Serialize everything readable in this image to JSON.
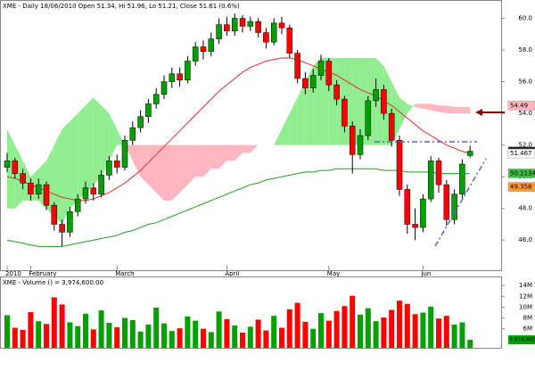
{
  "chart_data": [
    {
      "type": "candlestick",
      "title": "XME - Daily 18/06/2010 Open 51.34, Hi 51.96, Lo 51.21, Close 51.61 (0.6%)",
      "categories": [
        "2010",
        null,
        null,
        "February",
        null,
        null,
        null,
        null,
        null,
        null,
        null,
        null,
        null,
        null,
        "March",
        null,
        null,
        null,
        null,
        null,
        null,
        null,
        null,
        null,
        null,
        null,
        null,
        null,
        "April",
        null,
        null,
        null,
        null,
        null,
        null,
        null,
        null,
        null,
        null,
        null,
        null,
        "May",
        null,
        null,
        null,
        null,
        null,
        null,
        null,
        null,
        null,
        null,
        null,
        "Jun",
        null,
        null,
        null,
        null,
        null,
        null
      ],
      "open": [
        50.6,
        51.0,
        50.2,
        49.6,
        48.9,
        49.5,
        48.2,
        47.0,
        46.5,
        47.8,
        48.6,
        49.3,
        48.9,
        50.1,
        51.0,
        50.6,
        52.3,
        53.1,
        53.8,
        54.6,
        55.2,
        56.0,
        56.5,
        56.1,
        57.3,
        58.2,
        57.9,
        58.7,
        59.6,
        59.2,
        60.0,
        59.5,
        59.8,
        59.1,
        58.5,
        59.7,
        59.4,
        57.8,
        56.2,
        55.6,
        56.4,
        57.3,
        55.8,
        54.9,
        53.2,
        51.4,
        52.6,
        54.8,
        55.5,
        54.0,
        52.3,
        49.2,
        47.0,
        46.8,
        48.6,
        51.0,
        49.5,
        47.3,
        48.9,
        51.34
      ],
      "high": [
        51.5,
        51.2,
        50.5,
        49.9,
        49.9,
        49.7,
        48.4,
        47.3,
        48.1,
        48.9,
        49.7,
        49.6,
        50.4,
        51.3,
        51.4,
        52.6,
        53.5,
        54.2,
        54.9,
        55.6,
        56.4,
        56.9,
        56.9,
        57.6,
        58.5,
        58.6,
        59.1,
        60.0,
        60.1,
        60.3,
        60.2,
        60.1,
        60.0,
        59.4,
        60.0,
        60.1,
        59.6,
        58.0,
        56.6,
        56.8,
        57.7,
        57.5,
        56.1,
        55.1,
        53.5,
        53.0,
        55.1,
        56.2,
        55.8,
        54.3,
        52.6,
        49.5,
        48.0,
        48.9,
        51.3,
        51.2,
        49.8,
        49.2,
        51.1,
        51.96
      ],
      "low": [
        50.3,
        49.9,
        49.2,
        48.5,
        48.6,
        47.9,
        46.6,
        45.6,
        46.2,
        47.5,
        48.3,
        48.5,
        48.7,
        49.8,
        50.2,
        50.4,
        52.0,
        52.8,
        53.4,
        54.3,
        54.9,
        55.6,
        55.7,
        55.9,
        57.0,
        57.4,
        57.6,
        58.4,
        58.9,
        58.9,
        59.1,
        59.2,
        58.8,
        58.1,
        58.3,
        59.0,
        57.5,
        55.9,
        55.2,
        55.3,
        56.1,
        55.4,
        54.5,
        52.8,
        50.2,
        51.1,
        52.3,
        54.4,
        53.6,
        51.9,
        48.8,
        46.4,
        46.0,
        46.5,
        48.4,
        49.0,
        46.9,
        47.0,
        48.6,
        51.21
      ],
      "close": [
        51.0,
        50.2,
        49.6,
        48.9,
        49.5,
        48.2,
        47.0,
        46.5,
        47.8,
        48.6,
        49.3,
        48.9,
        50.1,
        51.0,
        50.6,
        52.3,
        53.1,
        53.8,
        54.6,
        55.2,
        56.0,
        56.5,
        56.1,
        57.3,
        58.2,
        57.9,
        58.7,
        59.6,
        59.2,
        60.0,
        59.5,
        59.8,
        59.1,
        58.5,
        59.7,
        59.4,
        57.8,
        56.2,
        55.6,
        56.4,
        57.3,
        55.8,
        54.9,
        53.2,
        51.4,
        52.6,
        54.8,
        55.5,
        54.0,
        52.3,
        49.2,
        47.0,
        46.8,
        48.6,
        51.0,
        49.5,
        47.3,
        48.9,
        50.8,
        51.61
      ],
      "up_color": "#00a000",
      "down_color": "#ff0000",
      "ylim": [
        44.1,
        61.1
      ],
      "yticks": [
        {
          "value": 46,
          "label": "46.0"
        },
        {
          "value": 48,
          "label": "48.0"
        },
        {
          "value": 50,
          "label": "50.0"
        },
        {
          "value": 52,
          "label": "52.0"
        },
        {
          "value": 54,
          "label": "54.0"
        },
        {
          "value": 56,
          "label": "56.0"
        },
        {
          "value": 58,
          "label": "58.0"
        },
        {
          "value": 60,
          "label": "60.0"
        }
      ],
      "cloud": {
        "up_color": "#90ee90",
        "down_color": "#ffb6c1",
        "span_a": [
          53,
          52,
          51,
          50,
          50.5,
          51,
          52,
          53,
          53.5,
          54,
          54.5,
          55,
          54.5,
          54,
          53,
          52,
          51,
          50,
          49.5,
          49,
          48.5,
          48.5,
          49,
          49.5,
          50,
          50,
          50.5,
          50.5,
          51,
          51,
          51.5,
          51.5,
          52,
          52,
          52,
          53,
          54,
          55,
          56,
          57,
          57.5,
          57.5,
          57.5,
          57.5,
          57.5,
          57.5,
          57.5,
          57.5,
          57,
          56,
          55,
          54.6,
          54.4,
          54.3,
          54.2,
          54.1,
          54.0,
          54.0,
          54.0,
          54.0
        ],
        "span_b": [
          48,
          48,
          48.5,
          48.5,
          48.5,
          48,
          47.5,
          47,
          48,
          48.5,
          49,
          49.5,
          50,
          51,
          52,
          52,
          52,
          52,
          52,
          52,
          52,
          52,
          52,
          52,
          52,
          52,
          52,
          52,
          52,
          52,
          52,
          52,
          52,
          52,
          52,
          52,
          52,
          52,
          52,
          52,
          52,
          52,
          52,
          52,
          52,
          52,
          52,
          52,
          52,
          52,
          53,
          54,
          54.6,
          54.6,
          54.6,
          54.5,
          54.5,
          54.4,
          54.4,
          54.4
        ]
      },
      "overlays": [
        {
          "kind": "line",
          "color": "#e03030",
          "values": [
            50.0,
            49.9,
            49.7,
            49.5,
            49.3,
            49.1,
            48.9,
            48.7,
            48.6,
            48.5,
            48.5,
            48.6,
            48.8,
            49.0,
            49.3,
            49.6,
            50.0,
            50.4,
            50.9,
            51.4,
            51.9,
            52.4,
            52.9,
            53.4,
            53.9,
            54.4,
            54.9,
            55.4,
            55.8,
            56.2,
            56.6,
            56.9,
            57.1,
            57.3,
            57.4,
            57.5,
            57.5,
            57.4,
            57.2,
            57.0,
            56.8,
            56.6,
            56.4,
            56.1,
            55.8,
            55.5,
            55.3,
            55.1,
            54.8,
            54.5,
            54.1,
            53.7,
            53.3,
            52.9,
            52.6,
            52.3,
            52.0,
            51.8,
            51.6,
            51.5
          ]
        },
        {
          "kind": "line",
          "color": "#20a020",
          "values": [
            46.0,
            45.9,
            45.8,
            45.7,
            45.6,
            45.6,
            45.6,
            45.6,
            45.7,
            45.8,
            45.9,
            46.0,
            46.1,
            46.2,
            46.3,
            46.5,
            46.6,
            46.8,
            47.0,
            47.1,
            47.3,
            47.5,
            47.7,
            47.9,
            48.1,
            48.3,
            48.5,
            48.7,
            48.9,
            49.1,
            49.3,
            49.5,
            49.6,
            49.8,
            49.9,
            50.0,
            50.1,
            50.2,
            50.3,
            50.3,
            50.4,
            50.4,
            50.5,
            50.5,
            50.5,
            50.5,
            50.5,
            50.5,
            50.4,
            50.4,
            50.4,
            50.3,
            50.3,
            50.3,
            50.3,
            50.2,
            50.2,
            50.2,
            50.2,
            50.2
          ]
        }
      ],
      "price_labels": [
        {
          "value": 54.49,
          "color": "#ffb6c1",
          "text_color": "#000000"
        },
        {
          "value": 51.61,
          "color": "#202020",
          "text_color": "#ffffff"
        },
        {
          "value": 51.467,
          "color": "#ffffff",
          "text_color": "#000000"
        },
        {
          "value": 50.2134,
          "color": "#40c040",
          "text_color": "#000000"
        },
        {
          "value": 49.358,
          "color": "#ff9933",
          "text_color": "#000000"
        }
      ]
    },
    {
      "type": "bar",
      "title": "XME - Volume () = 3,974,600.00",
      "up_color": "#00a000",
      "down_color": "#ff0000",
      "values": [
        8500000,
        6200000,
        5800000,
        9100000,
        7400000,
        6900000,
        11800000,
        10500000,
        7200000,
        6500000,
        8800000,
        5900000,
        9400000,
        7100000,
        6300000,
        8000000,
        7600000,
        5500000,
        6800000,
        9900000,
        7000000,
        5600000,
        6100000,
        8300000,
        7500000,
        6000000,
        5400000,
        9200000,
        7800000,
        6600000,
        5300000,
        6400000,
        7700000,
        5700000,
        8400000,
        6200000,
        9600000,
        10800000,
        7300000,
        6000000,
        8900000,
        7500000,
        9300000,
        10200000,
        12100000,
        8600000,
        9800000,
        7400000,
        8100000,
        9500000,
        11200000,
        10600000,
        8700000,
        9000000,
        10100000,
        7900000,
        8400000,
        6800000,
        7200000,
        3974600
      ],
      "value_labels": [
        null,
        null,
        null,
        null,
        null,
        null,
        null,
        null,
        null,
        null,
        null,
        null,
        null,
        null,
        null,
        null,
        null,
        null,
        null,
        null,
        null,
        null,
        null,
        null,
        null,
        null,
        null,
        null,
        null,
        null,
        null,
        null,
        null,
        null,
        null,
        null,
        null,
        null,
        null,
        null,
        null,
        null,
        null,
        null,
        null,
        null,
        null,
        null,
        null,
        null,
        null,
        null,
        null,
        null,
        null,
        null,
        null,
        null,
        null,
        "3,974,600"
      ],
      "ylim": [
        2500000,
        15500000
      ],
      "yticks": [
        {
          "value": 6000000,
          "label": "6M"
        },
        {
          "value": 8000000,
          "label": "8M"
        },
        {
          "value": 10000000,
          "label": "10M"
        },
        {
          "value": 12000000,
          "label": "12M"
        },
        {
          "value": 14000000,
          "label": "14M"
        }
      ]
    }
  ]
}
